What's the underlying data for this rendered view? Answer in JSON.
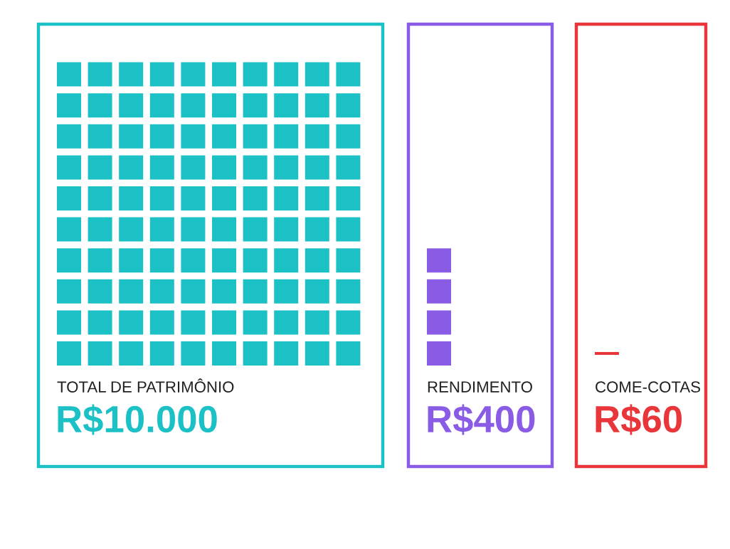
{
  "chart_data": {
    "type": "other",
    "categories": [
      "TOTAL DE PATRIMÔNIO",
      "RENDIMENTO",
      "COME-COTAS"
    ],
    "values": [
      10000,
      400,
      60
    ],
    "colors": [
      "#1cc1c6",
      "#8a5ce6",
      "#e8363a"
    ],
    "value_labels": [
      "R$10.000",
      "R$400",
      "R$60"
    ]
  }
}
